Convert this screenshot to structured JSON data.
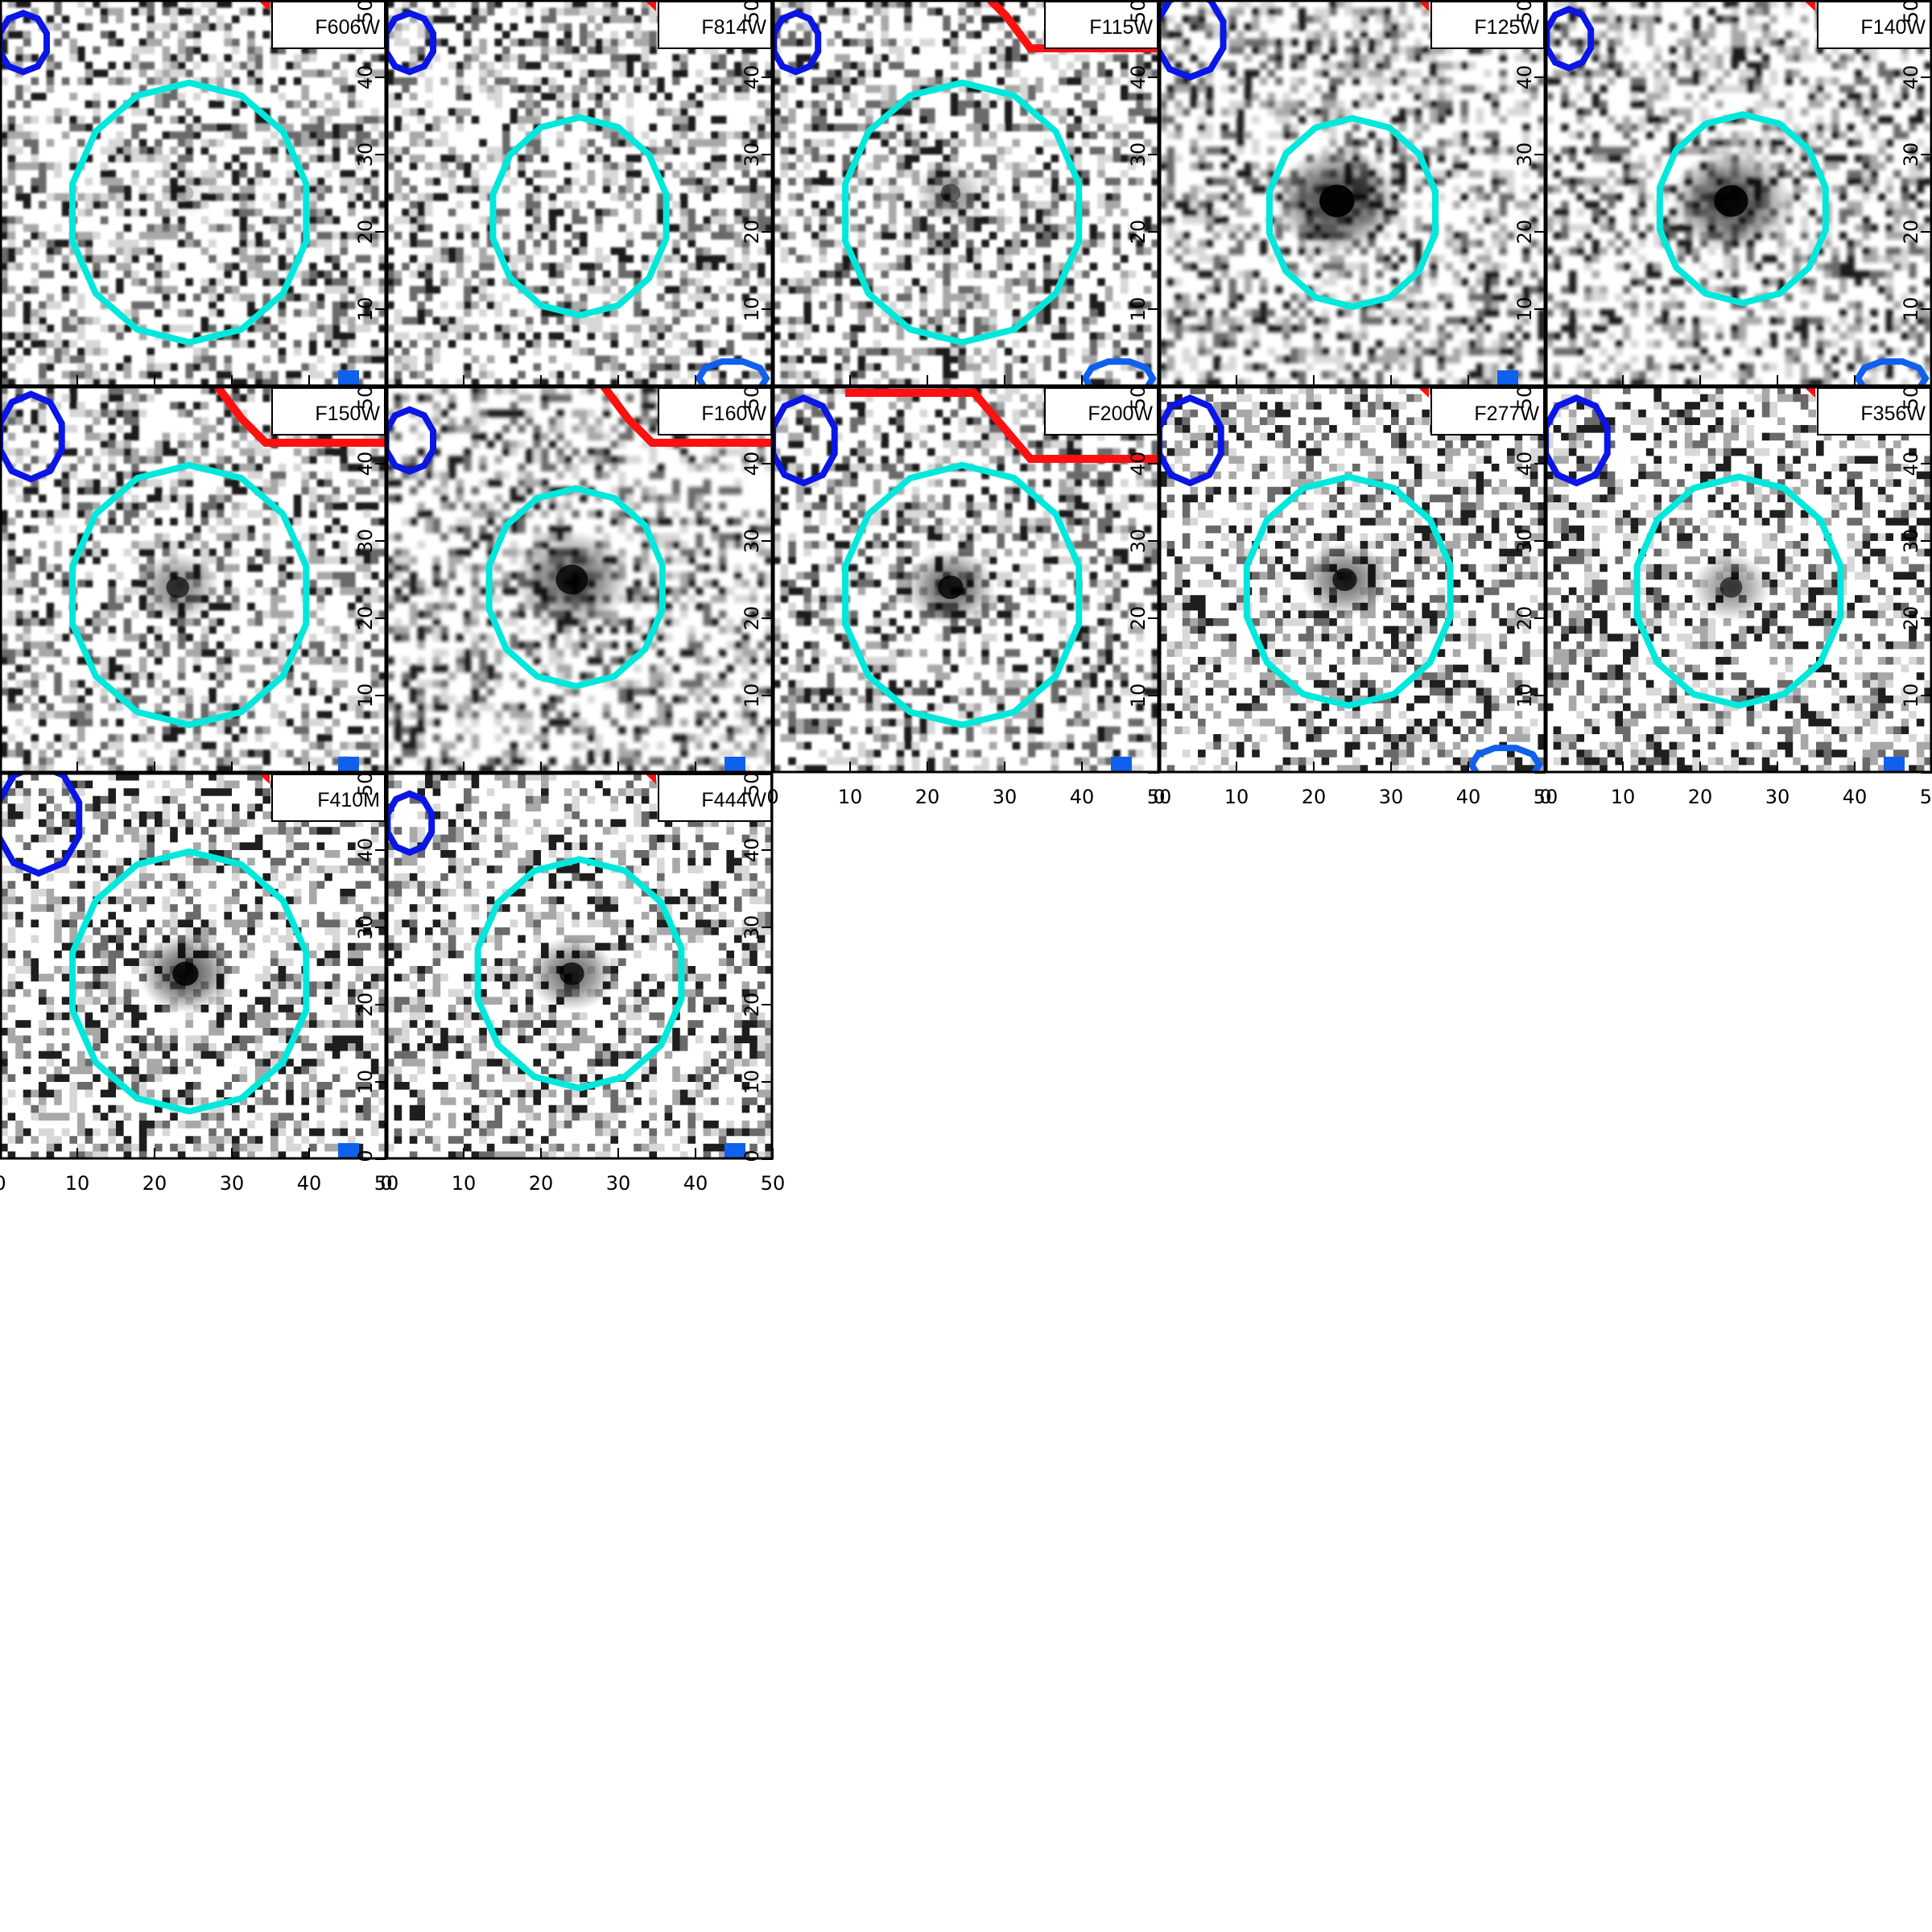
{
  "figure": {
    "panels": [
      {
        "band": "F606W",
        "source_blob": 0.1,
        "source_center": [
          24,
          25
        ],
        "star": false
      },
      {
        "band": "F814W",
        "source_blob": 0.0,
        "source_center": [
          25,
          25
        ],
        "star": false
      },
      {
        "band": "F115W",
        "source_blob": 0.35,
        "source_center": [
          23,
          25
        ],
        "star": false
      },
      {
        "band": "F125W",
        "source_blob": 0.85,
        "source_center": [
          23,
          24
        ],
        "star": false
      },
      {
        "band": "F140W",
        "source_blob": 0.8,
        "source_center": [
          24,
          24
        ],
        "star": false
      },
      {
        "band": "F150W",
        "source_blob": 0.55,
        "source_center": [
          23,
          24
        ],
        "star": false
      },
      {
        "band": "F160W",
        "source_blob": 0.7,
        "source_center": [
          24,
          25
        ],
        "star": false
      },
      {
        "band": "F200W",
        "source_blob": 0.7,
        "source_center": [
          23,
          24
        ],
        "star": false
      },
      {
        "band": "F277W",
        "source_blob": 0.65,
        "source_center": [
          24,
          25
        ],
        "star": true
      },
      {
        "band": "F356W",
        "source_blob": 0.5,
        "source_center": [
          24,
          24
        ],
        "star": true
      },
      {
        "band": "F410M",
        "source_blob": 0.75,
        "source_center": [
          24,
          24
        ],
        "star": true
      },
      {
        "band": "F444W",
        "source_blob": 0.65,
        "source_center": [
          24,
          24
        ],
        "star": true
      }
    ],
    "axis": {
      "range": [
        0,
        50
      ],
      "ticks": [
        0,
        10,
        20,
        30,
        40,
        50
      ],
      "tick_labels": [
        "0",
        "10",
        "20",
        "30",
        "40",
        "50"
      ]
    },
    "colors": {
      "aperture": "#00e8dc",
      "neighbor_blue": "#0a16e6",
      "neighbor_red": "#ff1010",
      "marker_blue": "#1060ee",
      "ink": "#000000"
    }
  }
}
